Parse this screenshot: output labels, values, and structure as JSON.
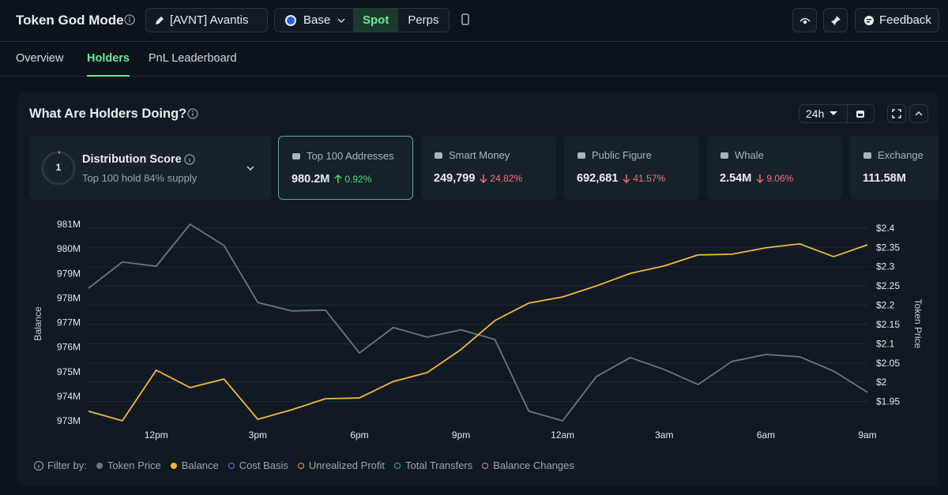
{
  "app": {
    "title": "Token God Mode",
    "token": "[AVNT] Avantis",
    "chain": "Base",
    "modes": [
      "Spot",
      "Perps"
    ],
    "active_mode": 0,
    "feedback": "Feedback"
  },
  "tabs": {
    "items": [
      "Overview",
      "Holders",
      "PnL Leaderboard"
    ],
    "active": 1
  },
  "panel": {
    "title": "What Are Holders Doing?",
    "range": "24h"
  },
  "distribution": {
    "label": "Distribution Score",
    "score": 1,
    "summary": "Top 100 hold 84% supply"
  },
  "metrics": [
    {
      "label": "Top 100 Addresses",
      "value": "980.2M",
      "change": "0.92%",
      "direction": "up",
      "selected": true
    },
    {
      "label": "Smart Money",
      "value": "249,799",
      "change": "24.82%",
      "direction": "down"
    },
    {
      "label": "Public Figure",
      "value": "692,681",
      "change": "41.57%",
      "direction": "down"
    },
    {
      "label": "Whale",
      "value": "2.54M",
      "change": "9.06%",
      "direction": "down"
    },
    {
      "label": "Exchange",
      "value": "111.58M"
    }
  ],
  "chart_data": {
    "type": "line",
    "y_label": "Balance",
    "y2_label": "Token Price",
    "filter_label": "Filter by:",
    "categories": [
      null,
      null,
      "12pm",
      null,
      null,
      "3pm",
      null,
      null,
      "6pm",
      null,
      null,
      "9pm",
      null,
      null,
      "12am",
      null,
      null,
      "3am",
      null,
      null,
      "6am",
      null,
      null,
      "9am"
    ],
    "ylim": [
      973,
      981
    ],
    "yticks": [
      {
        "value": 973,
        "label": "973M"
      },
      {
        "value": 974,
        "label": "974M"
      },
      {
        "value": 975,
        "label": "975M"
      },
      {
        "value": 976,
        "label": "976M"
      },
      {
        "value": 977,
        "label": "977M"
      },
      {
        "value": 978,
        "label": "978M"
      },
      {
        "value": 979,
        "label": "979M"
      },
      {
        "value": 980,
        "label": "980M"
      },
      {
        "value": 981,
        "label": "981M"
      }
    ],
    "y2lim": [
      1.9,
      2.41
    ],
    "y2ticks": [
      {
        "value": 1.95,
        "label": "$1.95"
      },
      {
        "value": 2,
        "label": "$2"
      },
      {
        "value": 2.05,
        "label": "$2.05"
      },
      {
        "value": 2.1,
        "label": "$2.1"
      },
      {
        "value": 2.15,
        "label": "$2.15"
      },
      {
        "value": 2.2,
        "label": "$2.2"
      },
      {
        "value": 2.25,
        "label": "$2.25"
      },
      {
        "value": 2.3,
        "label": "$2.3"
      },
      {
        "value": 2.35,
        "label": "$2.35"
      },
      {
        "value": 2.4,
        "label": "$2.4"
      }
    ],
    "grid": true,
    "series": [
      {
        "name": "Token Price",
        "color": "#6b7680",
        "axis": "y2",
        "values": [
          2.244,
          2.312,
          2.301,
          2.41,
          2.355,
          2.207,
          2.185,
          2.187,
          2.076,
          2.142,
          2.117,
          2.136,
          2.111,
          1.925,
          1.9,
          2.015,
          2.064,
          2.033,
          1.994,
          2.054,
          2.072,
          2.066,
          2.029,
          1.974
        ]
      },
      {
        "name": "Balance",
        "color": "#f0b93a",
        "axis": "y",
        "values": [
          973.39,
          973.0,
          975.06,
          974.35,
          974.7,
          973.06,
          973.45,
          973.9,
          973.93,
          974.6,
          974.96,
          975.9,
          977.08,
          977.79,
          978.04,
          978.49,
          979.0,
          979.3,
          979.75,
          979.78,
          980.04,
          980.2,
          979.68,
          980.16
        ]
      }
    ],
    "inactive_series": [
      {
        "name": "Cost Basis",
        "color": "#8b5cf6"
      },
      {
        "name": "Unrealized Profit",
        "color": "#f59e42"
      },
      {
        "name": "Total Transfers",
        "color": "#3aa5a0"
      },
      {
        "name": "Balance Changes",
        "color": "#e879c9"
      }
    ]
  }
}
